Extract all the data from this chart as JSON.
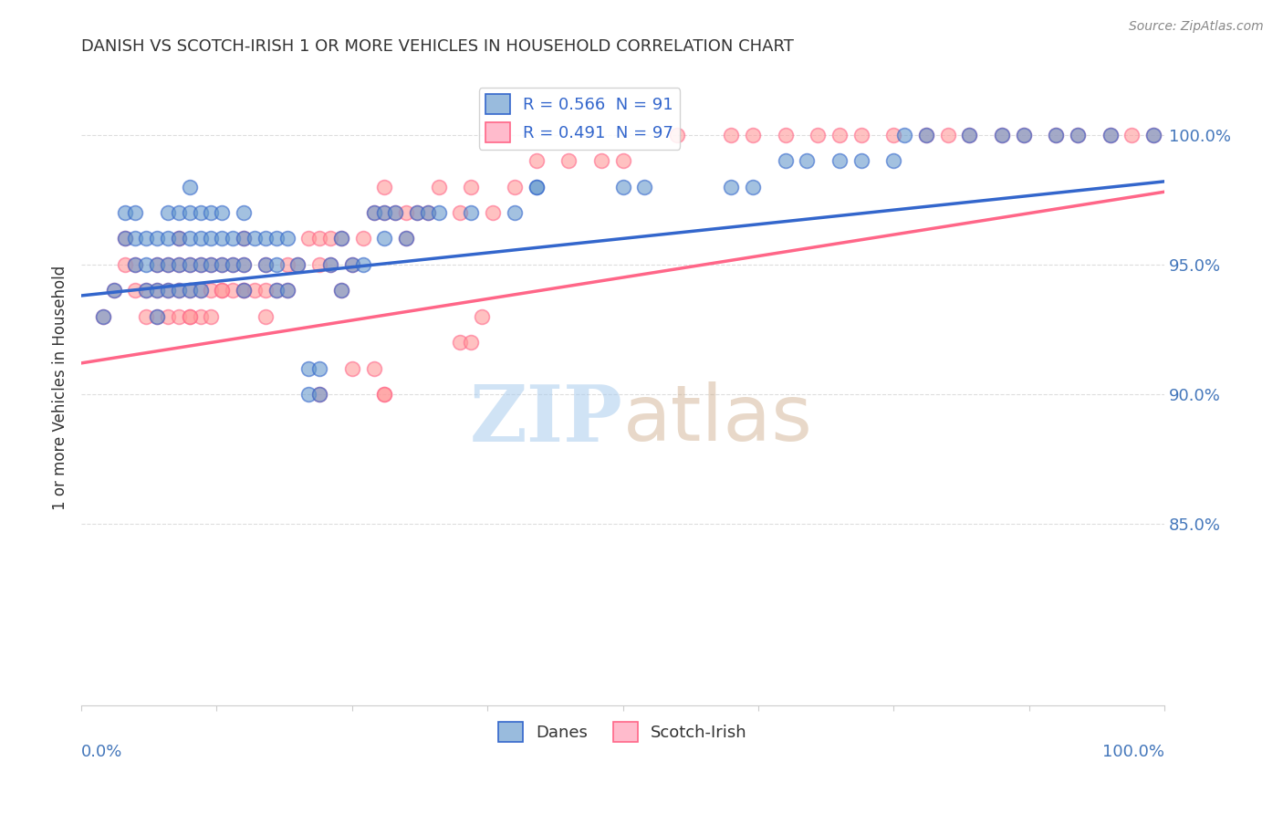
{
  "title": "DANISH VS SCOTCH-IRISH 1 OR MORE VEHICLES IN HOUSEHOLD CORRELATION CHART",
  "source": "Source: ZipAtlas.com",
  "ylabel": "1 or more Vehicles in Household",
  "ytick_labels": [
    "100.0%",
    "95.0%",
    "90.0%",
    "85.0%"
  ],
  "ytick_values": [
    1.0,
    0.95,
    0.9,
    0.85
  ],
  "xlim": [
    0.0,
    1.0
  ],
  "ylim": [
    0.78,
    1.025
  ],
  "legend_blue_label": "R = 0.566  N = 91",
  "legend_pink_label": "R = 0.491  N = 97",
  "danes_label": "Danes",
  "scotch_label": "Scotch-Irish",
  "blue_color": "#6699CC",
  "pink_color": "#FF9999",
  "blue_line_color": "#3366CC",
  "pink_line_color": "#FF6688",
  "blue_legend_color": "#99BBDD",
  "pink_legend_color": "#FFBBCC",
  "watermark_zip_color": "#AACCEE",
  "watermark_atlas_color": "#CCAA88",
  "danes_x": [
    0.02,
    0.03,
    0.04,
    0.04,
    0.05,
    0.05,
    0.05,
    0.06,
    0.06,
    0.06,
    0.07,
    0.07,
    0.07,
    0.07,
    0.08,
    0.08,
    0.08,
    0.08,
    0.09,
    0.09,
    0.09,
    0.09,
    0.1,
    0.1,
    0.1,
    0.1,
    0.1,
    0.11,
    0.11,
    0.11,
    0.11,
    0.12,
    0.12,
    0.12,
    0.13,
    0.13,
    0.13,
    0.14,
    0.14,
    0.15,
    0.15,
    0.15,
    0.15,
    0.16,
    0.17,
    0.17,
    0.18,
    0.18,
    0.18,
    0.19,
    0.19,
    0.2,
    0.21,
    0.21,
    0.22,
    0.22,
    0.23,
    0.24,
    0.24,
    0.25,
    0.26,
    0.27,
    0.28,
    0.28,
    0.29,
    0.3,
    0.31,
    0.32,
    0.33,
    0.36,
    0.4,
    0.42,
    0.42,
    0.5,
    0.52,
    0.6,
    0.62,
    0.65,
    0.67,
    0.7,
    0.72,
    0.75,
    0.76,
    0.78,
    0.82,
    0.85,
    0.87,
    0.9,
    0.92,
    0.95,
    0.99
  ],
  "danes_y": [
    0.93,
    0.94,
    0.96,
    0.97,
    0.95,
    0.96,
    0.97,
    0.94,
    0.95,
    0.96,
    0.93,
    0.94,
    0.95,
    0.96,
    0.94,
    0.95,
    0.96,
    0.97,
    0.94,
    0.95,
    0.96,
    0.97,
    0.94,
    0.95,
    0.96,
    0.97,
    0.98,
    0.94,
    0.95,
    0.96,
    0.97,
    0.95,
    0.96,
    0.97,
    0.95,
    0.96,
    0.97,
    0.95,
    0.96,
    0.94,
    0.95,
    0.96,
    0.97,
    0.96,
    0.95,
    0.96,
    0.94,
    0.95,
    0.96,
    0.94,
    0.96,
    0.95,
    0.9,
    0.91,
    0.9,
    0.91,
    0.95,
    0.94,
    0.96,
    0.95,
    0.95,
    0.97,
    0.96,
    0.97,
    0.97,
    0.96,
    0.97,
    0.97,
    0.97,
    0.97,
    0.97,
    0.98,
    0.98,
    0.98,
    0.98,
    0.98,
    0.98,
    0.99,
    0.99,
    0.99,
    0.99,
    0.99,
    1.0,
    1.0,
    1.0,
    1.0,
    1.0,
    1.0,
    1.0,
    1.0,
    1.0
  ],
  "scotch_x": [
    0.02,
    0.03,
    0.04,
    0.04,
    0.05,
    0.05,
    0.06,
    0.06,
    0.07,
    0.07,
    0.07,
    0.08,
    0.08,
    0.08,
    0.09,
    0.09,
    0.09,
    0.09,
    0.1,
    0.1,
    0.1,
    0.11,
    0.11,
    0.11,
    0.12,
    0.12,
    0.12,
    0.13,
    0.13,
    0.14,
    0.14,
    0.15,
    0.15,
    0.15,
    0.16,
    0.17,
    0.17,
    0.18,
    0.19,
    0.19,
    0.2,
    0.21,
    0.22,
    0.22,
    0.23,
    0.23,
    0.24,
    0.24,
    0.25,
    0.26,
    0.27,
    0.28,
    0.28,
    0.29,
    0.3,
    0.3,
    0.31,
    0.32,
    0.33,
    0.35,
    0.36,
    0.38,
    0.4,
    0.42,
    0.45,
    0.48,
    0.5,
    0.55,
    0.6,
    0.62,
    0.65,
    0.68,
    0.7,
    0.72,
    0.75,
    0.78,
    0.8,
    0.82,
    0.85,
    0.87,
    0.9,
    0.92,
    0.95,
    0.97,
    0.99,
    0.35,
    0.36,
    0.37,
    0.25,
    0.27,
    0.22,
    0.28,
    0.28,
    0.15,
    0.17,
    0.1,
    0.13
  ],
  "scotch_y": [
    0.93,
    0.94,
    0.95,
    0.96,
    0.94,
    0.95,
    0.93,
    0.94,
    0.93,
    0.94,
    0.95,
    0.93,
    0.94,
    0.95,
    0.93,
    0.94,
    0.95,
    0.96,
    0.93,
    0.94,
    0.95,
    0.93,
    0.94,
    0.95,
    0.93,
    0.94,
    0.95,
    0.94,
    0.95,
    0.94,
    0.95,
    0.94,
    0.95,
    0.96,
    0.94,
    0.94,
    0.95,
    0.94,
    0.94,
    0.95,
    0.95,
    0.96,
    0.95,
    0.96,
    0.95,
    0.96,
    0.94,
    0.96,
    0.95,
    0.96,
    0.97,
    0.97,
    0.98,
    0.97,
    0.96,
    0.97,
    0.97,
    0.97,
    0.98,
    0.97,
    0.98,
    0.97,
    0.98,
    0.99,
    0.99,
    0.99,
    0.99,
    1.0,
    1.0,
    1.0,
    1.0,
    1.0,
    1.0,
    1.0,
    1.0,
    1.0,
    1.0,
    1.0,
    1.0,
    1.0,
    1.0,
    1.0,
    1.0,
    1.0,
    1.0,
    0.92,
    0.92,
    0.93,
    0.91,
    0.91,
    0.9,
    0.9,
    0.9,
    0.94,
    0.93,
    0.93,
    0.94
  ],
  "danes_trendline_x": [
    0.0,
    1.0
  ],
  "danes_trendline_y": [
    0.938,
    0.982
  ],
  "scotch_trendline_x": [
    0.0,
    1.0
  ],
  "scotch_trendline_y": [
    0.912,
    0.978
  ],
  "grid_color": "#DDDDDD",
  "title_color": "#333333",
  "axis_label_color": "#333333",
  "ytick_color": "#4477BB",
  "xtick_color": "#4477BB"
}
